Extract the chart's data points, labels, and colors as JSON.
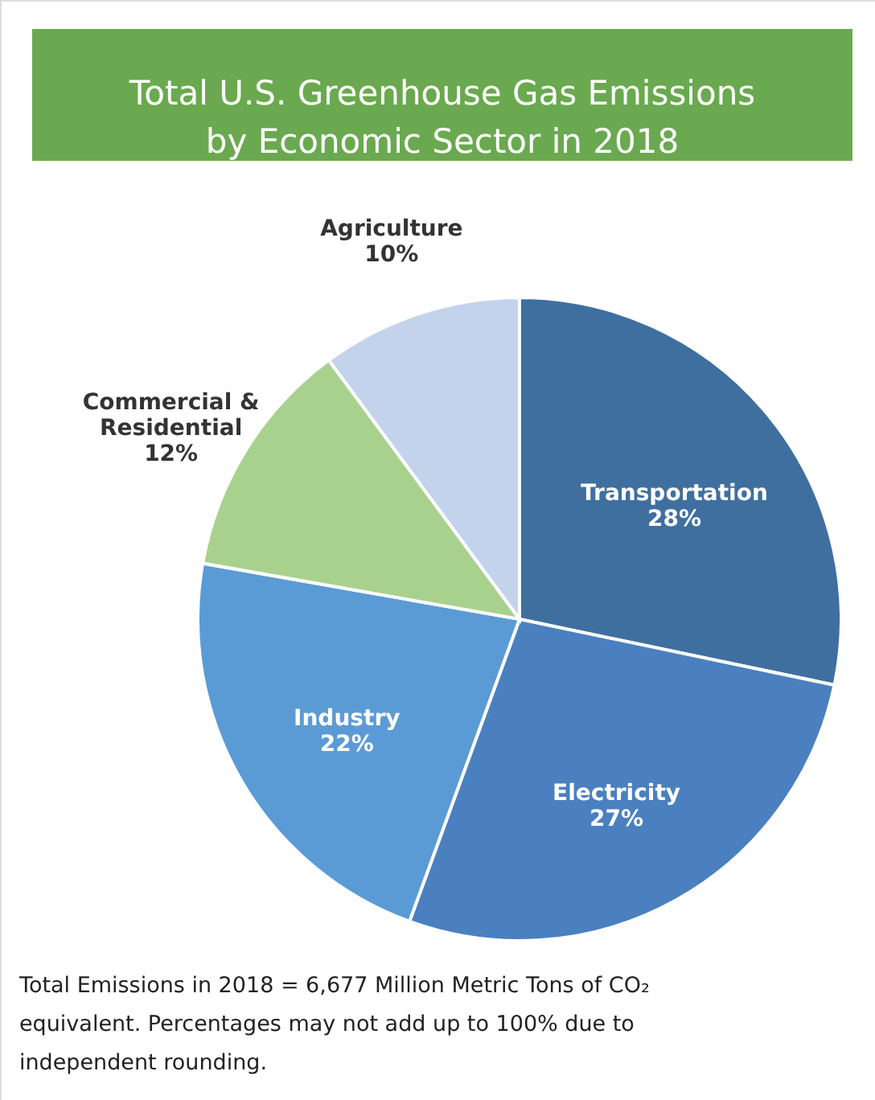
{
  "chart_data": {
    "type": "pie",
    "title": "Total U.S. Greenhouse Gas Emissions by Economic Sector in 2018",
    "categories": [
      "Transportation",
      "Electricity",
      "Industry",
      "Commercial & Residential",
      "Agriculture"
    ],
    "values": [
      28,
      27,
      22,
      12,
      10
    ],
    "value_labels": [
      "28%",
      "27%",
      "22%",
      "12%",
      "10%"
    ],
    "colors": [
      "#3f6f9f",
      "#4a80c0",
      "#5b9bd5",
      "#a9d18e",
      "#c4d3ec"
    ],
    "annotations": [
      "Total Emissions in 2018 = 6,677 Million Metric Tons of CO₂ equivalent. Percentages may not add up to 100% due to independent rounding."
    ]
  }
}
